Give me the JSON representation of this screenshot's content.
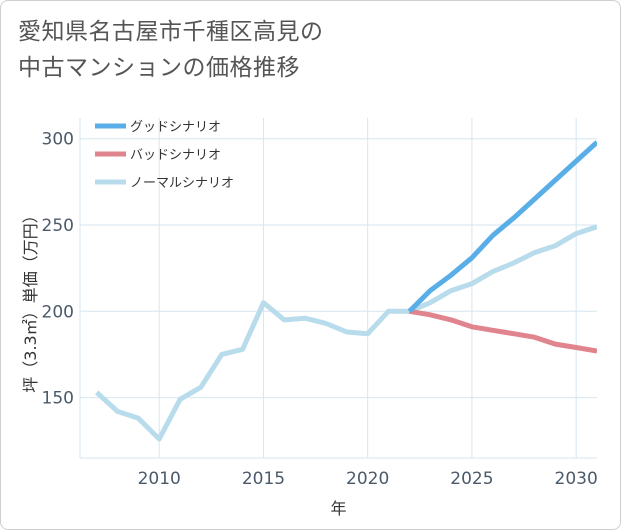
{
  "title_lines": [
    "愛知県名古屋市千種区高見の",
    "中古マンションの価格推移"
  ],
  "chart_data": {
    "type": "line",
    "xlabel": "年",
    "ylabel": "坪（3.3㎡）単価（万円）",
    "xlim": [
      2006.2,
      2031
    ],
    "ylim": [
      115,
      312
    ],
    "xticks": [
      2010,
      2015,
      2020,
      2025,
      2030
    ],
    "yticks": [
      150,
      200,
      250,
      300
    ],
    "grid": true,
    "legend_position": "top-left",
    "series": [
      {
        "name": "グッドシナリオ",
        "color": "#5aaee8",
        "x": [
          2022,
          2023,
          2024,
          2025,
          2026,
          2027,
          2028,
          2029,
          2030,
          2031
        ],
        "y": [
          200,
          212,
          221,
          231,
          244,
          254,
          265,
          276,
          287,
          298
        ]
      },
      {
        "name": "バッドシナリオ",
        "color": "#e0848e",
        "x": [
          2022,
          2023,
          2024,
          2025,
          2026,
          2027,
          2028,
          2029,
          2030,
          2031
        ],
        "y": [
          200,
          198,
          195,
          191,
          189,
          187,
          185,
          181,
          179,
          177
        ]
      },
      {
        "name": "ノーマルシナリオ",
        "color": "#b8dcec",
        "x": [
          2007,
          2008,
          2009,
          2010,
          2011,
          2012,
          2013,
          2014,
          2015,
          2016,
          2017,
          2018,
          2019,
          2020,
          2021,
          2022,
          2023,
          2024,
          2025,
          2026,
          2027,
          2028,
          2029,
          2030,
          2031
        ],
        "y": [
          153,
          142,
          138,
          126,
          149,
          156,
          175,
          178,
          205,
          195,
          196,
          193,
          188,
          187,
          200,
          200,
          205,
          212,
          216,
          223,
          228,
          234,
          238,
          245,
          249
        ]
      }
    ]
  }
}
